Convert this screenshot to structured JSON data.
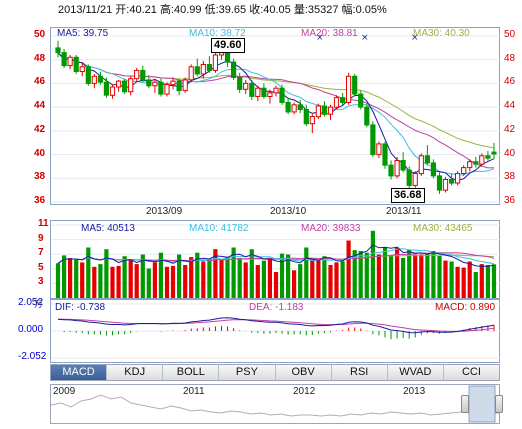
{
  "header": {
    "text": "2013/11/21 开:40.21 高:40.99 低:39.65 收:40.05 量:35327 幅:0.05%"
  },
  "price": {
    "ma5": "MA5: 39.75",
    "ma10": "MA10: 38.72",
    "ma20": "MA20: 38.81",
    "ma30": "MA30: 40.30",
    "high_callout": "49.60",
    "low_callout": "36.68",
    "y_ticks": [
      "50",
      "48",
      "46",
      "44",
      "42",
      "40",
      "38",
      "36"
    ],
    "date_labels": [
      "2013/09",
      "2013/10",
      "2013/11"
    ]
  },
  "volume": {
    "ma5": "MA5: 40513",
    "ma10": "MA10: 41782",
    "ma20": "MA20: 39833",
    "ma30": "MA30: 43465",
    "y_ticks": [
      "11",
      "9",
      "7",
      "5",
      "3"
    ]
  },
  "macd": {
    "unit": "万",
    "dif": "DIF: -0.738",
    "dea": "DEA: -1.183",
    "macd": "MACD: 0.890",
    "y_ticks": [
      "2.052",
      "0.000",
      "-2.052"
    ]
  },
  "tabs": [
    "MACD",
    "KDJ",
    "BOLL",
    "PSY",
    "OBV",
    "RSI",
    "WVAD",
    "CCI"
  ],
  "active_tab": "MACD",
  "navigator": {
    "years": [
      "2009",
      "2011",
      "2012",
      "2013"
    ]
  },
  "colors": {
    "up": "#e60000",
    "down": "#009a00",
    "ma5": "#1a1aa0",
    "ma10": "#3cbfe0",
    "ma20": "#c040a0",
    "ma30": "#a0b040"
  },
  "chart_data": {
    "type": "candlestick",
    "title": "",
    "candles": [
      [
        49.0,
        49.6,
        48.2,
        48.6
      ],
      [
        48.6,
        48.9,
        47.3,
        47.5
      ],
      [
        47.5,
        48.4,
        47.2,
        48.2
      ],
      [
        48.2,
        48.4,
        46.8,
        47.0
      ],
      [
        47.0,
        47.8,
        46.6,
        47.4
      ],
      [
        47.4,
        47.6,
        45.8,
        46.0
      ],
      [
        46.0,
        46.8,
        45.6,
        46.6
      ],
      [
        46.6,
        47.0,
        45.9,
        46.1
      ],
      [
        46.1,
        46.5,
        44.8,
        45.0
      ],
      [
        45.0,
        45.9,
        44.7,
        45.7
      ],
      [
        45.7,
        46.3,
        45.3,
        46.2
      ],
      [
        46.2,
        46.4,
        45.1,
        45.3
      ],
      [
        45.3,
        46.6,
        45.0,
        46.4
      ],
      [
        46.4,
        47.3,
        46.2,
        47.1
      ],
      [
        47.1,
        47.5,
        46.1,
        46.3
      ],
      [
        46.3,
        46.7,
        45.6,
        45.8
      ],
      [
        45.8,
        46.4,
        45.2,
        46.1
      ],
      [
        46.1,
        46.4,
        44.9,
        45.1
      ],
      [
        45.1,
        46.1,
        44.9,
        45.9
      ],
      [
        45.9,
        46.5,
        45.5,
        46.2
      ],
      [
        46.2,
        46.4,
        45.0,
        45.4
      ],
      [
        45.4,
        46.5,
        45.2,
        46.3
      ],
      [
        46.3,
        47.6,
        46.1,
        47.4
      ],
      [
        47.4,
        48.1,
        46.6,
        46.8
      ],
      [
        46.8,
        47.9,
        46.4,
        47.6
      ],
      [
        47.6,
        48.3,
        46.9,
        47.1
      ],
      [
        47.1,
        48.6,
        46.9,
        48.4
      ],
      [
        48.4,
        49.6,
        48.0,
        48.6
      ],
      [
        48.6,
        48.9,
        47.4,
        47.8
      ],
      [
        47.8,
        48.1,
        46.3,
        46.5
      ],
      [
        46.5,
        46.9,
        45.2,
        45.5
      ],
      [
        45.5,
        46.3,
        45.1,
        46.0
      ],
      [
        46.0,
        46.3,
        44.6,
        44.9
      ],
      [
        44.9,
        45.8,
        44.5,
        45.6
      ],
      [
        45.6,
        46.0,
        44.7,
        44.9
      ],
      [
        44.9,
        45.5,
        44.3,
        45.2
      ],
      [
        45.2,
        45.8,
        44.9,
        45.6
      ],
      [
        45.6,
        45.9,
        44.2,
        44.4
      ],
      [
        44.4,
        44.8,
        43.4,
        43.6
      ],
      [
        43.6,
        44.4,
        43.4,
        44.2
      ],
      [
        44.2,
        44.6,
        43.5,
        43.8
      ],
      [
        43.8,
        44.2,
        42.4,
        42.6
      ],
      [
        42.6,
        43.4,
        41.8,
        43.2
      ],
      [
        43.2,
        44.3,
        43.0,
        44.1
      ],
      [
        44.1,
        44.5,
        43.2,
        43.4
      ],
      [
        43.4,
        44.2,
        42.9,
        44.0
      ],
      [
        44.0,
        45.0,
        43.8,
        44.8
      ],
      [
        44.8,
        45.2,
        44.2,
        44.4
      ],
      [
        44.4,
        46.9,
        44.2,
        46.6
      ],
      [
        46.6,
        46.8,
        44.9,
        45.1
      ],
      [
        45.1,
        45.4,
        43.8,
        44.0
      ],
      [
        44.0,
        44.3,
        42.3,
        42.5
      ],
      [
        42.5,
        42.8,
        39.8,
        40.0
      ],
      [
        40.0,
        41.1,
        39.7,
        40.9
      ],
      [
        40.9,
        41.1,
        38.8,
        39.1
      ],
      [
        39.1,
        39.5,
        37.9,
        38.2
      ],
      [
        38.2,
        39.8,
        38.0,
        39.5
      ],
      [
        39.5,
        40.2,
        38.5,
        38.7
      ],
      [
        38.7,
        39.0,
        37.1,
        37.4
      ],
      [
        37.4,
        38.6,
        37.2,
        38.4
      ],
      [
        38.4,
        40.1,
        38.2,
        39.9
      ],
      [
        39.9,
        40.8,
        39.1,
        39.3
      ],
      [
        39.3,
        39.6,
        38.0,
        38.2
      ],
      [
        38.2,
        38.5,
        36.68,
        37.0
      ],
      [
        37.0,
        38.1,
        36.8,
        37.9
      ],
      [
        37.9,
        38.4,
        37.4,
        37.6
      ],
      [
        37.6,
        38.6,
        37.4,
        38.4
      ],
      [
        38.4,
        39.1,
        38.2,
        38.9
      ],
      [
        38.9,
        39.6,
        38.6,
        39.4
      ],
      [
        39.4,
        39.8,
        38.9,
        39.2
      ],
      [
        39.2,
        40.1,
        39.0,
        39.9
      ],
      [
        39.9,
        40.3,
        39.5,
        39.7
      ],
      [
        40.21,
        40.99,
        39.65,
        40.05
      ]
    ],
    "ylim": [
      36,
      50
    ],
    "volume_ylim": [
      1,
      11
    ],
    "macd_ylim": [
      -2.052,
      2.052
    ]
  }
}
